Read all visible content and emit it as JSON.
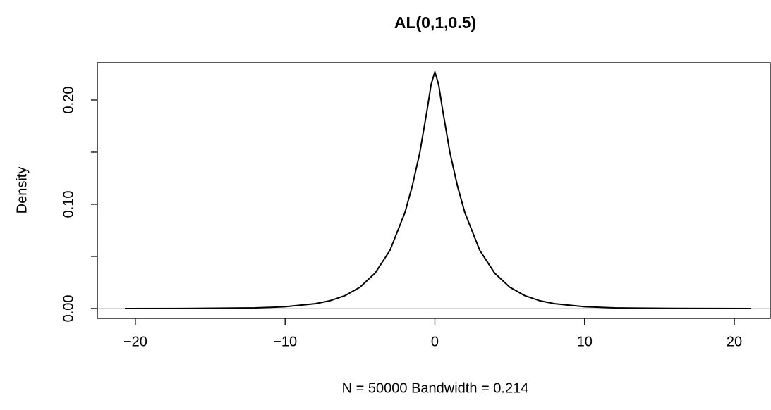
{
  "chart_data": {
    "type": "line",
    "title": "AL(0,1,0.5)",
    "x_label": "N = 50000   Bandwidth = 0.214",
    "y_label": "Density",
    "x": [
      -20.7,
      -16,
      -12,
      -10,
      -8,
      -7,
      -6,
      -5,
      -4,
      -3,
      -2,
      -1.5,
      -1,
      -0.5,
      -0.25,
      0,
      0.25,
      0.5,
      1,
      1.5,
      2,
      3,
      4,
      5,
      6,
      7,
      8,
      10,
      12,
      16,
      21.1
    ],
    "series": [
      {
        "color": "#000000",
        "values": [
          0.0,
          0.0001,
          0.0006,
          0.0017,
          0.0046,
          0.0075,
          0.0124,
          0.0205,
          0.0338,
          0.0558,
          0.092,
          0.118,
          0.15,
          0.192,
          0.215,
          0.227,
          0.215,
          0.192,
          0.15,
          0.118,
          0.092,
          0.0558,
          0.0338,
          0.0205,
          0.0124,
          0.0075,
          0.0046,
          0.0017,
          0.0006,
          0.0001,
          0.0
        ]
      }
    ],
    "hline": {
      "value": 0,
      "color": "#b3b3b3"
    },
    "xlim": [
      -22.54,
      22.4
    ],
    "ylim": [
      -0.0095,
      0.2358
    ],
    "xticks": [
      {
        "value": -20,
        "label": "−20"
      },
      {
        "value": -10,
        "label": "−10"
      },
      0,
      10,
      20
    ],
    "yticks": [
      {
        "value": 0,
        "label": "0.00"
      },
      {
        "value": 0.1,
        "label": "0.10"
      },
      {
        "value": 0.2,
        "label": "0.20"
      }
    ],
    "yticks_minor": [
      0.05,
      0.15
    ]
  }
}
